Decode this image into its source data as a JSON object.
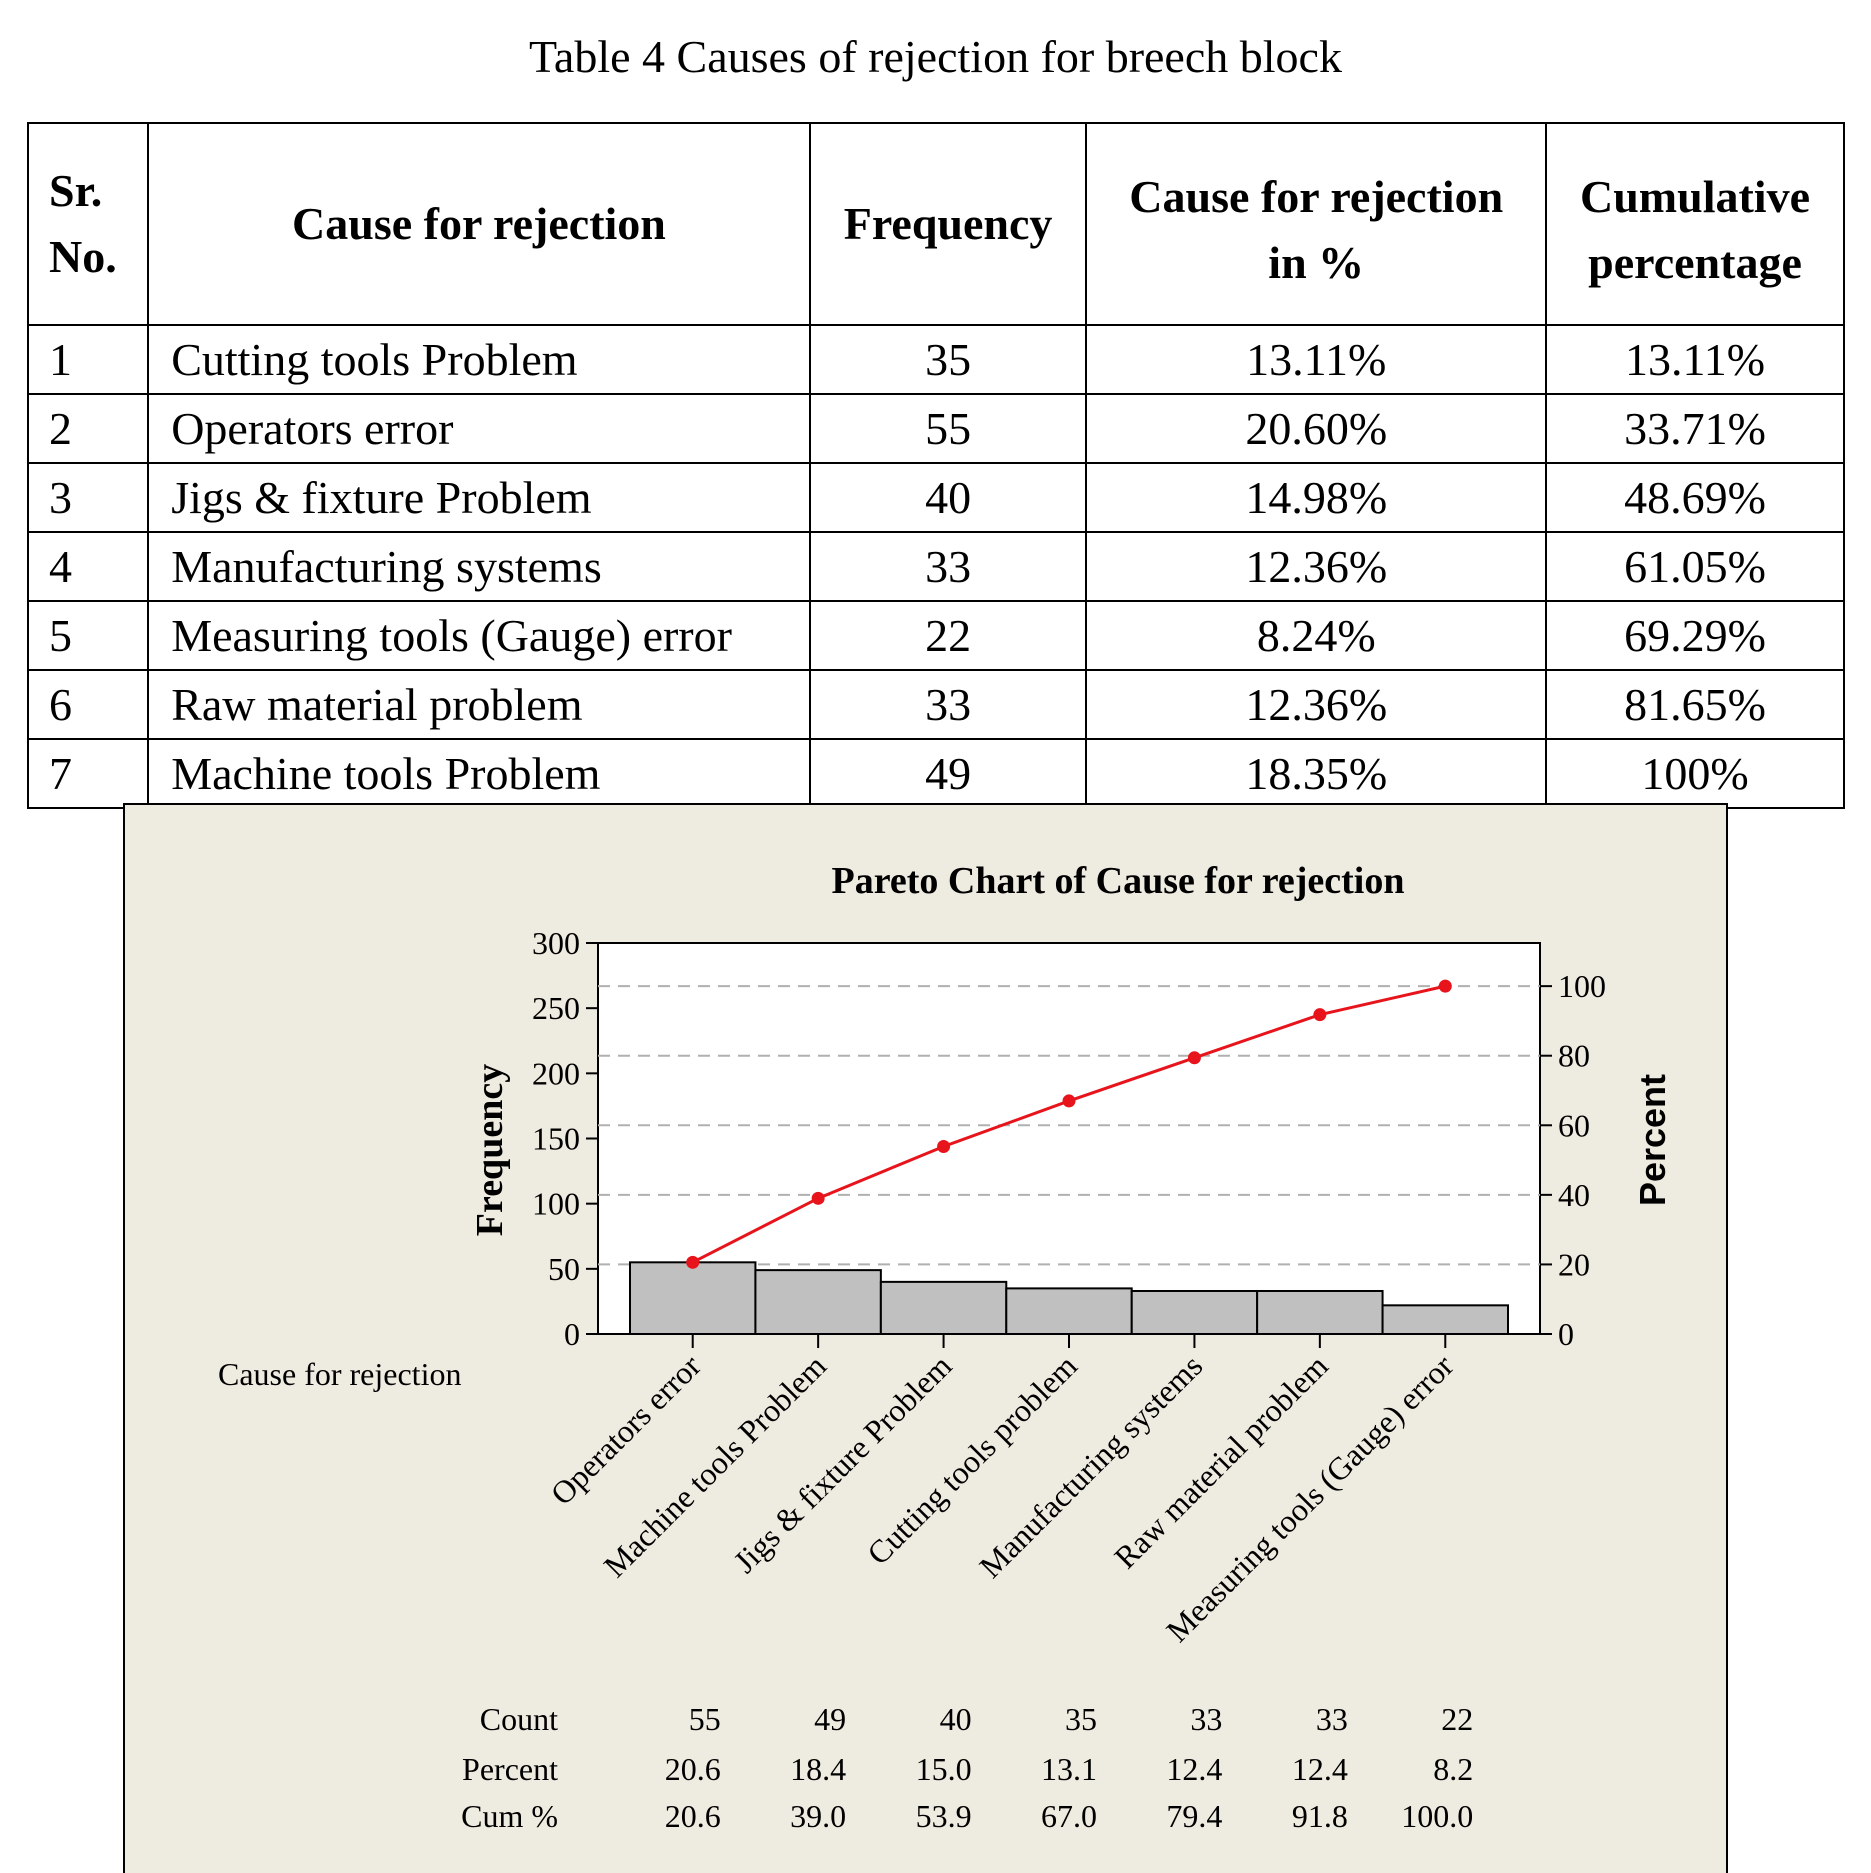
{
  "table": {
    "caption": "Table 4 Causes of rejection for breech block",
    "headers": {
      "sr_line1": "Sr.",
      "sr_line2": "No.",
      "cause": "Cause for rejection",
      "frequency": "Frequency",
      "pct_line1": "Cause for rejection",
      "pct_line2": "in %",
      "cum_line1": "Cumulative",
      "cum_line2": "percentage"
    },
    "rows": [
      {
        "sr": "1",
        "cause": "Cutting tools Problem",
        "frequency": "35",
        "percent": "13.11%",
        "cumulative": "13.11%"
      },
      {
        "sr": "2",
        "cause": "Operators error",
        "frequency": "55",
        "percent": "20.60%",
        "cumulative": "33.71%"
      },
      {
        "sr": "3",
        "cause": "Jigs & fixture Problem",
        "frequency": "40",
        "percent": "14.98%",
        "cumulative": "48.69%"
      },
      {
        "sr": "4",
        "cause": "Manufacturing systems",
        "frequency": "33",
        "percent": "12.36%",
        "cumulative": "61.05%"
      },
      {
        "sr": "5",
        "cause": "Measuring tools (Gauge) error",
        "frequency": "22",
        "percent": "8.24%",
        "cumulative": "69.29%"
      },
      {
        "sr": "6",
        "cause": "Raw material problem",
        "frequency": "33",
        "percent": "12.36%",
        "cumulative": "81.65%"
      },
      {
        "sr": "7",
        "cause": "Machine tools Problem",
        "frequency": "49",
        "percent": "18.35%",
        "cumulative": "100%"
      }
    ]
  },
  "chart_data": {
    "type": "bar",
    "title": "Pareto Chart of Cause for rejection",
    "ylabel": "Frequency",
    "y2label": "Percent",
    "category_axis_label": "Cause for rejection",
    "categories": [
      "Operators error",
      "Machine tools Problem",
      "Jigs & fixture Problem",
      "Cutting tools problem",
      "Manufacturing systems",
      "Raw material problem",
      "Measuring tools (Gauge) error"
    ],
    "counts": [
      55,
      49,
      40,
      35,
      33,
      33,
      22
    ],
    "cum_percent": [
      20.6,
      39.0,
      53.9,
      67.0,
      79.4,
      91.8,
      100.0
    ],
    "ylim": [
      0,
      300
    ],
    "y2lim": [
      0,
      112.4
    ],
    "yticks": [
      0,
      50,
      100,
      150,
      200,
      250,
      300
    ],
    "y2ticks": [
      0,
      20,
      40,
      60,
      80,
      100
    ],
    "grid": "dashed horizontal at right-axis percent ticks",
    "colors": {
      "bars": "#c0c0c0",
      "line": "#e8141c",
      "grid": "#b0b0b0",
      "panel": "#eeebe0"
    },
    "summary_table": {
      "row_labels": [
        "Count",
        "Percent",
        "Cum %"
      ],
      "count": [
        "55",
        "49",
        "40",
        "35",
        "33",
        "33",
        "22"
      ],
      "percent": [
        "20.6",
        "18.4",
        "15.0",
        "13.1",
        "12.4",
        "12.4",
        "8.2"
      ],
      "cum": [
        "20.6",
        "39.0",
        "53.9",
        "67.0",
        "79.4",
        "91.8",
        "100.0"
      ]
    }
  }
}
